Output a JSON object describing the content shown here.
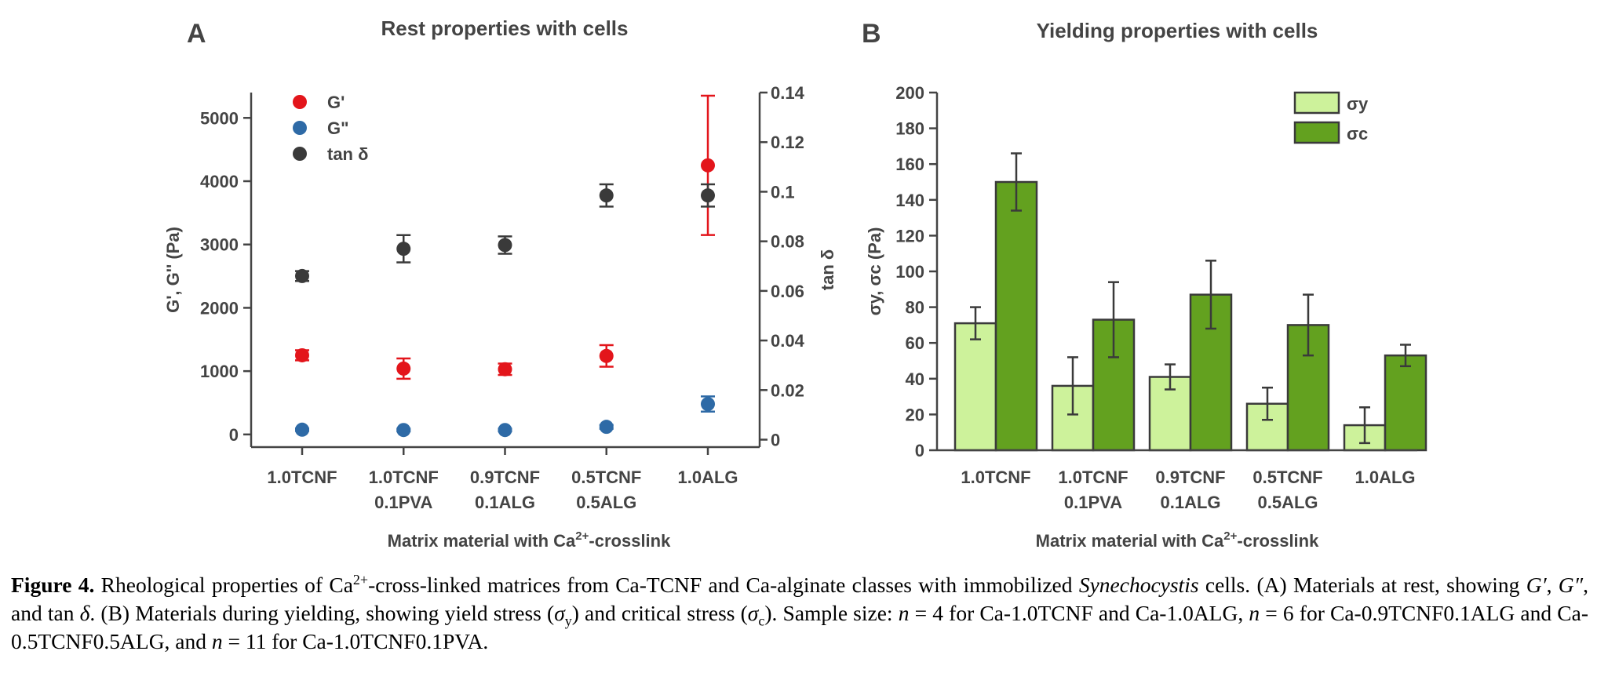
{
  "chart_data": [
    {
      "panel": "A",
      "type": "scatter",
      "title": "Rest properties with cells",
      "xlabel": "Matrix material with Ca2+-crosslink",
      "xlabel_parts": {
        "pre": "Matrix material with Ca",
        "sup": "2+",
        "post": "-crosslink"
      },
      "ylabel": "G', G'' (Pa)",
      "y2label": "tan δ",
      "categories": [
        [
          "1.0TCNF"
        ],
        [
          "1.0TCNF",
          "0.1PVA"
        ],
        [
          "0.9TCNF",
          "0.1ALG"
        ],
        [
          "0.5TCNF",
          "0.5ALG"
        ],
        [
          "1.0ALG"
        ]
      ],
      "ylim": [
        -200,
        5400
      ],
      "yticks": [
        0,
        1000,
        2000,
        3000,
        4000,
        5000
      ],
      "y2lim": [
        -0.003,
        0.14
      ],
      "y2ticks": [
        0,
        0.02,
        0.04,
        0.06,
        0.08,
        0.1,
        0.12,
        0.14
      ],
      "y2ticklabels": [
        "0",
        "0.02",
        "0.04",
        "0.06",
        "0.08",
        "0.1",
        "0.12",
        "0.14"
      ],
      "legend_position": "top-left",
      "series": [
        {
          "name": "G'",
          "axis": "left",
          "color": "#e3151b",
          "values": [
            1250,
            1040,
            1030,
            1240,
            4250
          ],
          "errors": [
            80,
            160,
            90,
            170,
            1100
          ]
        },
        {
          "name": "G\"",
          "axis": "left",
          "color": "#2e6aa6",
          "values": [
            75,
            70,
            70,
            120,
            480
          ],
          "errors": [
            20,
            20,
            20,
            30,
            120
          ]
        },
        {
          "name": "tan δ",
          "axis": "right",
          "color": "#3a3a3a",
          "values": [
            0.066,
            0.077,
            0.0785,
            0.0985,
            0.0985
          ],
          "errors": [
            0.002,
            0.0055,
            0.0035,
            0.0045,
            0.0045
          ]
        }
      ]
    },
    {
      "panel": "B",
      "type": "bar",
      "title": "Yielding properties with cells",
      "xlabel": "Matrix material with Ca2+-crosslink",
      "xlabel_parts": {
        "pre": "Matrix material with Ca",
        "sup": "2+",
        "post": "-crosslink"
      },
      "ylabel": "σy, σc (Pa)",
      "categories": [
        [
          "1.0TCNF"
        ],
        [
          "1.0TCNF",
          "0.1PVA"
        ],
        [
          "0.9TCNF",
          "0.1ALG"
        ],
        [
          "0.5TCNF",
          "0.5ALG"
        ],
        [
          "1.0ALG"
        ]
      ],
      "ylim": [
        0,
        200
      ],
      "yticks": [
        0,
        20,
        40,
        60,
        80,
        100,
        120,
        140,
        160,
        180,
        200
      ],
      "legend_position": "top-right",
      "series": [
        {
          "name": "σy",
          "color": "#cdf29b",
          "values": [
            71,
            36,
            41,
            26,
            14
          ],
          "errors": [
            9,
            16,
            7,
            9,
            10
          ]
        },
        {
          "name": "σc",
          "color": "#63a11f",
          "values": [
            150,
            73,
            87,
            70,
            53
          ],
          "errors": [
            16,
            21,
            19,
            17,
            6
          ]
        }
      ]
    }
  ],
  "caption": {
    "label": "Figure 4.",
    "segments": [
      {
        "t": " Rheological properties of Ca"
      },
      {
        "t": "2+",
        "sup": true
      },
      {
        "t": "-cross-linked matrices from Ca-TCNF and Ca-alginate classes with immobilized "
      },
      {
        "t": "Synechocystis",
        "i": true
      },
      {
        "t": " cells. (A) Materials at rest, showing "
      },
      {
        "t": "G′",
        "i": true
      },
      {
        "t": ", "
      },
      {
        "t": "G″",
        "i": true
      },
      {
        "t": ", and tan "
      },
      {
        "t": "δ",
        "i": true
      },
      {
        "t": ". (B) Materials during yielding, showing yield stress ("
      },
      {
        "t": "σ",
        "i": true
      },
      {
        "t": "y",
        "sub": true
      },
      {
        "t": ") and critical stress ("
      },
      {
        "t": "σ",
        "i": true
      },
      {
        "t": "c",
        "sub": true
      },
      {
        "t": "). Sample size: "
      },
      {
        "t": "n",
        "i": true
      },
      {
        "t": " = 4 for Ca-1.0TCNF and Ca-1.0ALG, "
      },
      {
        "t": "n",
        "i": true
      },
      {
        "t": " = 6 for Ca-0.9TCNF0.1ALG and Ca-0.5TCNF0.5ALG, and "
      },
      {
        "t": "n",
        "i": true
      },
      {
        "t": " = 11 for Ca-1.0TCNF0.1PVA."
      }
    ]
  }
}
